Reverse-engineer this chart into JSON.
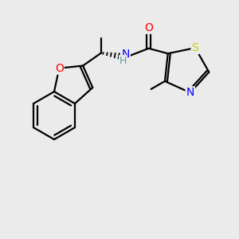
{
  "background_color": "#ebebeb",
  "bond_color": "#000000",
  "bond_width": 1.6,
  "atom_colors": {
    "O": "#ff0000",
    "N": "#0000ff",
    "S": "#cccc00",
    "C": "#000000",
    "H": "#5f9ea0"
  },
  "font_size_atoms": 10,
  "font_size_small": 9
}
